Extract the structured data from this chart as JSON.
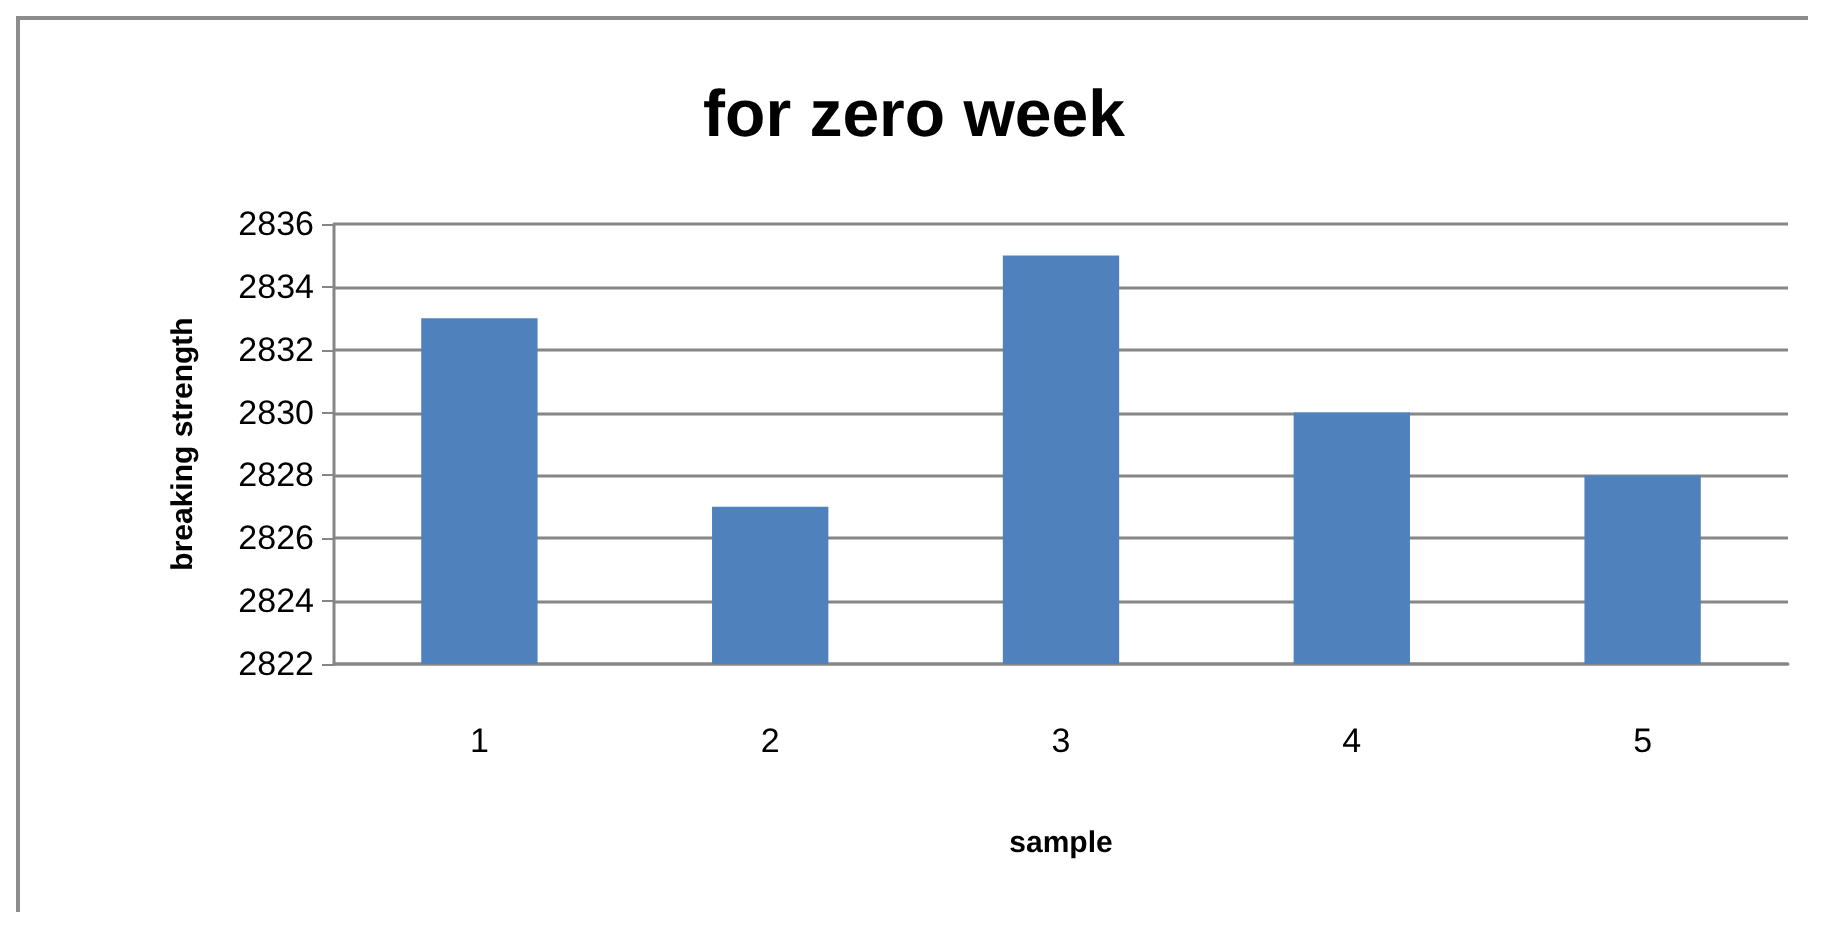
{
  "chart_data": {
    "type": "bar",
    "title": "for zero week",
    "xlabel": "sample",
    "ylabel": "breaking strength",
    "categories": [
      "1",
      "2",
      "3",
      "4",
      "5"
    ],
    "values": [
      2833,
      2827,
      2835,
      2830,
      2828
    ],
    "color": "#4f81bd",
    "ylim": [
      2822,
      2836
    ],
    "yticks": [
      2822,
      2824,
      2826,
      2828,
      2830,
      2832,
      2834,
      2836
    ],
    "grid": "y"
  }
}
